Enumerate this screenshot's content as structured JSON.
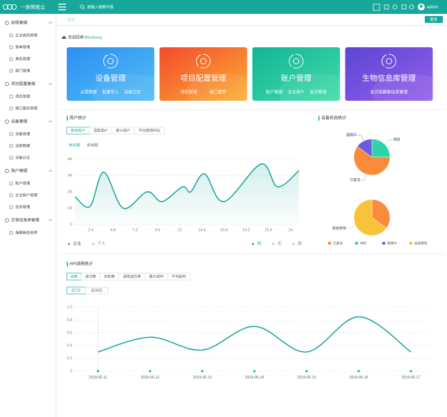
{
  "header": {
    "logo": "一脉智能云",
    "search": "请输入搜索内容",
    "user": "admin"
  },
  "sidebar": [
    {
      "title": "权限管理",
      "items": [
        "企业成员管理",
        "菜单管理",
        "角色管理",
        "部门管理"
      ]
    },
    {
      "title": "项目配置管理",
      "items": [
        "项目管理",
        "接口服务管理"
      ]
    },
    {
      "title": "设备管理",
      "items": [
        "设备管理",
        "运营数据",
        "设备日志"
      ]
    },
    {
      "title": "账户管理",
      "items": [
        "账户管理",
        "企业账户管理",
        "会员管理"
      ]
    },
    {
      "title": "生物信息库管理",
      "items": [
        "指静脉信息库"
      ]
    }
  ],
  "tabs": {
    "home": "首页",
    "more": "更多"
  },
  "welcome": {
    "text": "欢迎回来!",
    "user": "MissKeng"
  },
  "cards": [
    {
      "title": "设备管理",
      "links": [
        "运营数据",
        "批量导入",
        "设备日志"
      ],
      "colors": [
        "#2d8ff0",
        "#52bdf8"
      ]
    },
    {
      "title": "项目配置管理",
      "links": [
        "项目管理",
        "接口服务"
      ],
      "colors": [
        "#f4492c",
        "#fbb033"
      ]
    },
    {
      "title": "账户管理",
      "links": [
        "账户管理",
        "企业用户",
        "会员管理"
      ],
      "colors": [
        "#12b596",
        "#43dba9"
      ]
    },
    {
      "title": "生物信息库管理",
      "links": [
        "会员指静脉信息管理"
      ],
      "colors": [
        "#5b45d3",
        "#9560ea"
      ]
    }
  ],
  "chart_data": [
    {
      "type": "line",
      "title": "用户统计",
      "tabs": [
        "新增用户",
        "活跃用户",
        "累计用户",
        "平均使用时长"
      ],
      "views": [
        "柱状图",
        "折线图"
      ],
      "x": [
        0.7,
        2.3,
        3.8,
        5.9,
        8.5,
        10.1,
        12.3,
        13.2,
        14.7,
        16.8,
        20.8,
        22.6,
        24.9
      ],
      "series": [
        {
          "name": "企业",
          "color": "#17a89b",
          "values": [
            1700,
            1100,
            3200,
            1000,
            2000,
            1400,
            2300,
            2000,
            3100,
            1400,
            3700,
            2300,
            3300
          ]
        }
      ],
      "inactive_legend": [
        "个人"
      ],
      "periods": [
        "时",
        "天",
        "周"
      ],
      "xlim": [
        0.7,
        24.9
      ],
      "xticks": [
        2.4,
        4.8,
        7.2,
        9.6,
        12,
        14.4,
        16.8,
        19.2,
        21.6,
        24
      ],
      "ylim": [
        0,
        4000
      ],
      "yticks": [
        0,
        {
          "value": 1000,
          "label": "1K"
        },
        {
          "value": 2000,
          "label": "2K"
        },
        {
          "value": 3000,
          "label": "3K"
        },
        {
          "value": 4000,
          "label": "4K"
        }
      ],
      "grid": true
    },
    {
      "type": "pie",
      "title": "设备状态统计",
      "pies": [
        {
          "slices": [
            {
              "label": "待机",
              "value": 25,
              "color": "#2ed3a6"
            },
            {
              "label": "已激活",
              "value": 60,
              "color": "#f98c3a"
            },
            {
              "label": "报障中",
              "value": 15,
              "color": "#6c5ce0"
            }
          ]
        },
        {
          "slices": [
            {
              "value": 35,
              "color": "#f98c3a"
            },
            {
              "label": "高级使用",
              "value": 65,
              "color": "#f8c33a"
            }
          ]
        }
      ],
      "legend": [
        {
          "name": "已激活",
          "color": "#f98c3a"
        },
        {
          "name": "待机",
          "color": "#2ed3a6"
        },
        {
          "name": "报障中",
          "color": "#6c5ce0"
        },
        {
          "name": "高级使用",
          "color": "#f8c33a"
        }
      ]
    },
    {
      "type": "line",
      "title": "API调用统计",
      "tabs": [
        "总数",
        "成功数",
        "失败数",
        "调用成功率",
        "最大延时",
        "平均延时"
      ],
      "ranges": [
        "近7日",
        "近30日"
      ],
      "categories": [
        "2019-05-11",
        "2019-05-12",
        "2019-05-13",
        "2019-05-14",
        "2019-05-15",
        "2019-05-16",
        "2019-05-17"
      ],
      "series": [
        {
          "color": "#17a89b",
          "values": [
            0.3,
            0.53,
            0.33,
            0.7,
            0.3,
            0.85,
            0.3
          ]
        }
      ],
      "ylim": [
        0,
        1
      ],
      "yticks": [
        0,
        0.2,
        0.4,
        0.6,
        0.8,
        {
          "value": 1,
          "label": "1.0"
        }
      ],
      "grid": true
    }
  ]
}
